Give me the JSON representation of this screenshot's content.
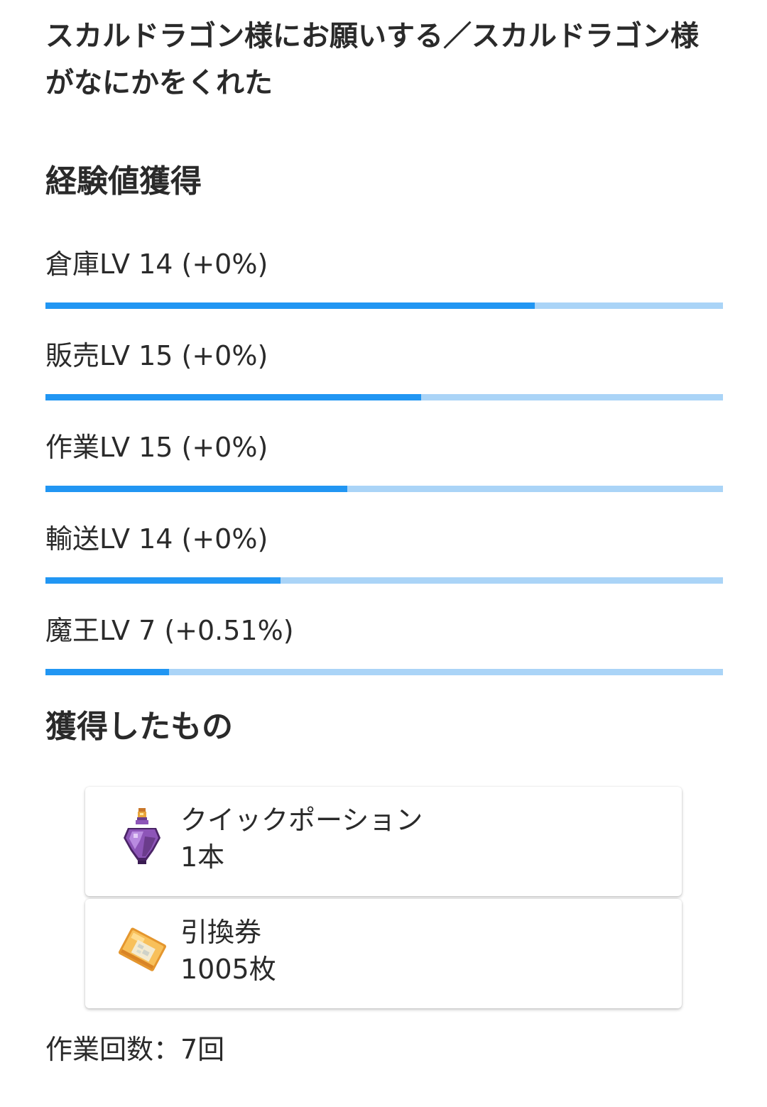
{
  "title": "スカルドラゴン様にお願いする／スカルドラゴン様がなにかをくれた",
  "exp_section": {
    "heading": "経験値獲得",
    "skills": [
      {
        "label": "倉庫LV 14 (+0%)",
        "progress": 0.722
      },
      {
        "label": "販売LV 15 (+0%)",
        "progress": 0.554
      },
      {
        "label": "作業LV 15 (+0%)",
        "progress": 0.445
      },
      {
        "label": "輸送LV 14 (+0%)",
        "progress": 0.347
      },
      {
        "label": "魔王LV 7 (+0.51%)",
        "progress": 0.182
      }
    ]
  },
  "items_section": {
    "heading": "獲得したもの",
    "items": [
      {
        "name": "クイックポーション",
        "qty": "1本",
        "icon": "potion-icon"
      },
      {
        "name": "引換券",
        "qty": "1005枚",
        "icon": "ticket-icon"
      }
    ]
  },
  "work_count": "作業回数：7回",
  "colors": {
    "bar_fill": "#2196f3",
    "bar_track": "#aad4f7",
    "text": "#2a2a2a"
  }
}
